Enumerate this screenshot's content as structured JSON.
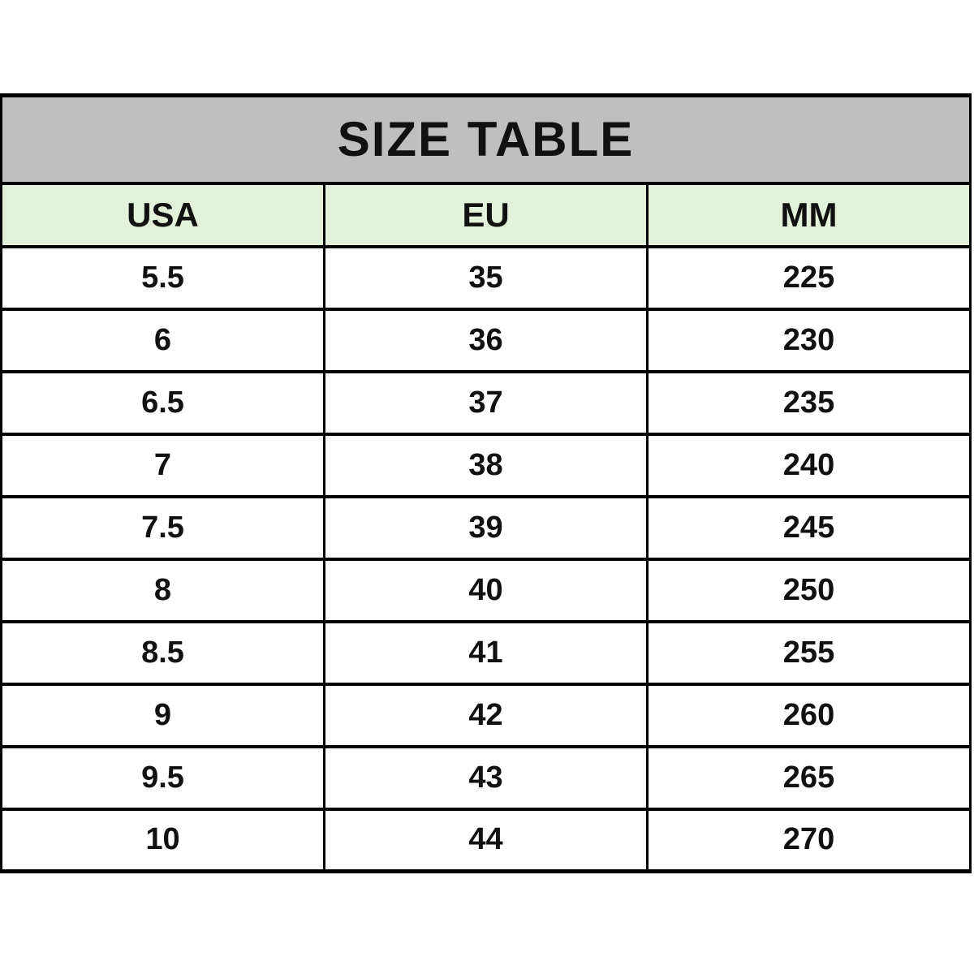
{
  "table": {
    "title": "SIZE TABLE",
    "columns": [
      "USA",
      "EU",
      "MM"
    ],
    "rows": [
      [
        "5.5",
        "35",
        "225"
      ],
      [
        "6",
        "36",
        "230"
      ],
      [
        "6.5",
        "37",
        "235"
      ],
      [
        "7",
        "38",
        "240"
      ],
      [
        "7.5",
        "39",
        "245"
      ],
      [
        "8",
        "40",
        "250"
      ],
      [
        "8.5",
        "41",
        "255"
      ],
      [
        "9",
        "42",
        "260"
      ],
      [
        "9.5",
        "43",
        "265"
      ],
      [
        "10",
        "44",
        "270"
      ]
    ]
  },
  "colors": {
    "title_bg": "#bfbfbf",
    "header_bg": "#e3f1db",
    "row_bg": "#ffffff",
    "border": "#000000",
    "text": "#111111"
  },
  "chart_data": {
    "type": "table",
    "title": "SIZE TABLE",
    "columns": [
      "USA",
      "EU",
      "MM"
    ],
    "rows": [
      [
        "5.5",
        "35",
        "225"
      ],
      [
        "6",
        "36",
        "230"
      ],
      [
        "6.5",
        "37",
        "235"
      ],
      [
        "7",
        "38",
        "240"
      ],
      [
        "7.5",
        "39",
        "245"
      ],
      [
        "8",
        "40",
        "250"
      ],
      [
        "8.5",
        "41",
        "255"
      ],
      [
        "9",
        "42",
        "260"
      ],
      [
        "9.5",
        "43",
        "265"
      ],
      [
        "10",
        "44",
        "270"
      ]
    ],
    "layout_hints": {
      "title_band_bg": "#bfbfbf",
      "header_row_bg": "#e3f1db",
      "body_bg": "#ffffff",
      "grid": "on",
      "border_color": "#000000"
    }
  }
}
